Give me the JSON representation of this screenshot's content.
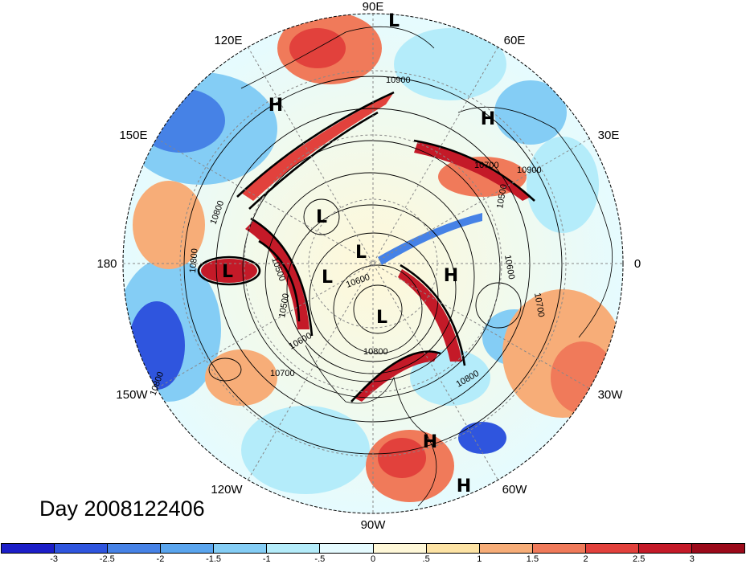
{
  "title": "Day 2008122406",
  "longitude_labels": [
    "90E",
    "60E",
    "30E",
    "0",
    "30W",
    "60W",
    "90W",
    "120W",
    "150W",
    "180",
    "150E",
    "120E"
  ],
  "highs_lows": [
    "L",
    "H",
    "H",
    "L",
    "L",
    "L",
    "H",
    "L",
    "L",
    "H",
    "H"
  ],
  "contour_labels": [
    "10900",
    "10700",
    "10900",
    "10800",
    "10800",
    "10500",
    "10500",
    "10500",
    "10800",
    "10600",
    "10700",
    "10600",
    "10700",
    "10800",
    "10800",
    "10600"
  ],
  "colorbar": {
    "labels": [
      "-3",
      "-2.5",
      "-2",
      "-1.5",
      "-1",
      "-.5",
      "0",
      ".5",
      "1",
      "1.5",
      "2",
      "2.5",
      "3"
    ],
    "colors": [
      "#1c1ec8",
      "#2f55de",
      "#4682e6",
      "#5aa5ee",
      "#84cdf5",
      "#b4ecfa",
      "#e5fbff",
      "#fff8d8",
      "#fde3a4",
      "#f7ad78",
      "#f07a5a",
      "#e2413c",
      "#c41a28",
      "#9b0a1a"
    ]
  }
}
